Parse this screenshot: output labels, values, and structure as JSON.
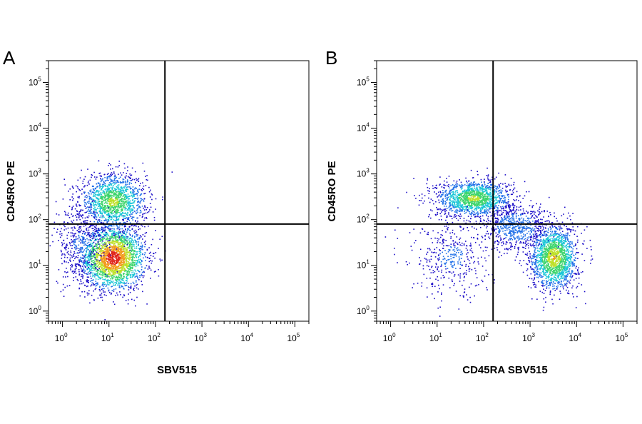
{
  "chart_data": [
    {
      "type": "scatter",
      "panel_label": "A",
      "xlabel": "SBV515",
      "ylabel": "CD45RO PE",
      "x_scale": "log",
      "y_scale": "log",
      "xlim": [
        0.5,
        200000
      ],
      "ylim": [
        0.6,
        300000
      ],
      "x_ticks": [
        1,
        10,
        100,
        1000,
        10000,
        100000
      ],
      "y_ticks": [
        1,
        10,
        100,
        1000,
        10000,
        100000
      ],
      "x_tick_labels": [
        {
          "base": "10",
          "exp": "0"
        },
        {
          "base": "10",
          "exp": "1"
        },
        {
          "base": "10",
          "exp": "2"
        },
        {
          "base": "10",
          "exp": "3"
        },
        {
          "base": "10",
          "exp": "4"
        },
        {
          "base": "10",
          "exp": "5"
        }
      ],
      "y_tick_labels": [
        {
          "base": "10",
          "exp": "0"
        },
        {
          "base": "10",
          "exp": "1"
        },
        {
          "base": "10",
          "exp": "2"
        },
        {
          "base": "10",
          "exp": "3"
        },
        {
          "base": "10",
          "exp": "4"
        },
        {
          "base": "10",
          "exp": "5"
        }
      ],
      "quadrant_gates": {
        "x": 160,
        "y": 80
      },
      "density_populations": [
        {
          "center_x": 12,
          "center_y": 15,
          "spread_x_log10": 0.35,
          "spread_y_log10": 0.35,
          "weight": 0.55
        },
        {
          "center_x": 12,
          "center_y": 250,
          "spread_x_log10": 0.35,
          "spread_y_log10": 0.3,
          "weight": 0.35
        },
        {
          "center_x": 2.5,
          "center_y": 30,
          "spread_x_log10": 0.3,
          "spread_y_log10": 0.45,
          "weight": 0.1
        }
      ],
      "colormap": [
        "#1a0cc8",
        "#1f6fe8",
        "#19c6d6",
        "#3cd46c",
        "#bfe02a",
        "#f29a1c",
        "#e0241a"
      ]
    },
    {
      "type": "scatter",
      "panel_label": "B",
      "xlabel": "CD45RA SBV515",
      "ylabel": "CD45RO PE",
      "x_scale": "log",
      "y_scale": "log",
      "xlim": [
        0.5,
        200000
      ],
      "ylim": [
        0.6,
        300000
      ],
      "x_ticks": [
        1,
        10,
        100,
        1000,
        10000,
        100000
      ],
      "y_ticks": [
        1,
        10,
        100,
        1000,
        10000,
        100000
      ],
      "x_tick_labels": [
        {
          "base": "10",
          "exp": "0"
        },
        {
          "base": "10",
          "exp": "1"
        },
        {
          "base": "10",
          "exp": "2"
        },
        {
          "base": "10",
          "exp": "3"
        },
        {
          "base": "10",
          "exp": "4"
        },
        {
          "base": "10",
          "exp": "5"
        }
      ],
      "y_tick_labels": [
        {
          "base": "10",
          "exp": "0"
        },
        {
          "base": "10",
          "exp": "1"
        },
        {
          "base": "10",
          "exp": "2"
        },
        {
          "base": "10",
          "exp": "3"
        },
        {
          "base": "10",
          "exp": "4"
        },
        {
          "base": "10",
          "exp": "5"
        }
      ],
      "quadrant_gates": {
        "x": 160,
        "y": 80
      },
      "density_populations": [
        {
          "center_x": 60,
          "center_y": 300,
          "spread_x_log10": 0.4,
          "spread_y_log10": 0.2,
          "weight": 0.35
        },
        {
          "center_x": 3200,
          "center_y": 15,
          "spread_x_log10": 0.25,
          "spread_y_log10": 0.35,
          "weight": 0.4
        },
        {
          "center_x": 500,
          "center_y": 70,
          "spread_x_log10": 0.35,
          "spread_y_log10": 0.25,
          "weight": 0.15
        },
        {
          "center_x": 20,
          "center_y": 15,
          "spread_x_log10": 0.45,
          "spread_y_log10": 0.45,
          "weight": 0.1
        }
      ],
      "colormap": [
        "#1a0cc8",
        "#1f6fe8",
        "#19c6d6",
        "#3cd46c",
        "#bfe02a",
        "#f29a1c",
        "#e0241a"
      ]
    }
  ]
}
